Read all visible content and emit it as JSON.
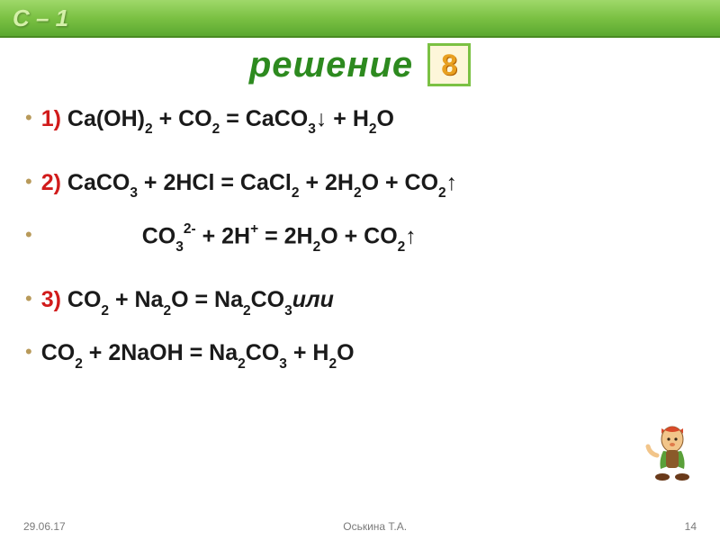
{
  "top_title": "С – 1",
  "header": {
    "title": "решение",
    "badge": "8"
  },
  "lines": [
    {
      "num": "1)",
      "eq_html": "Ca(OH)<sub>2</sub> + CO<sub>2</sub> = CaCO<sub>3</sub>↓ + H<sub>2</sub>O"
    },
    {
      "num": "2)",
      "eq_html": "CaCO<sub>3</sub> + 2HCl = CaCl<sub>2</sub> + 2H<sub>2</sub>O + CO<sub>2</sub>↑"
    },
    {
      "num": "",
      "indent": true,
      "eq_html": "CO<sub>3</sub><sup>2-</sup> + 2H<sup>+</sup> =  2H<sub>2</sub>O + CO<sub>2</sub>↑"
    },
    {
      "num": "3)",
      "eq_html": "CO<sub>2</sub> + Na<sub>2</sub>O = Na<sub>2</sub>CO<sub>3</sub>",
      "tail": "   или"
    },
    {
      "num": "",
      "eq_html": "CO<sub>2</sub> + 2NaOH = Na<sub>2</sub>CO<sub>3</sub> + H<sub>2</sub>O"
    }
  ],
  "footer": {
    "date": "29.06.17",
    "author": "Оськина Т.А.",
    "page": "14"
  },
  "colors": {
    "green_grad_top": "#9fd86a",
    "green_grad_bot": "#5ba830",
    "title_green": "#2d8a1f",
    "num_red": "#d11b1b",
    "bullet": "#b89a5a",
    "badge_border": "#7bc143",
    "badge_bg": "#fdf6d9",
    "badge_text": "#e8a020"
  }
}
